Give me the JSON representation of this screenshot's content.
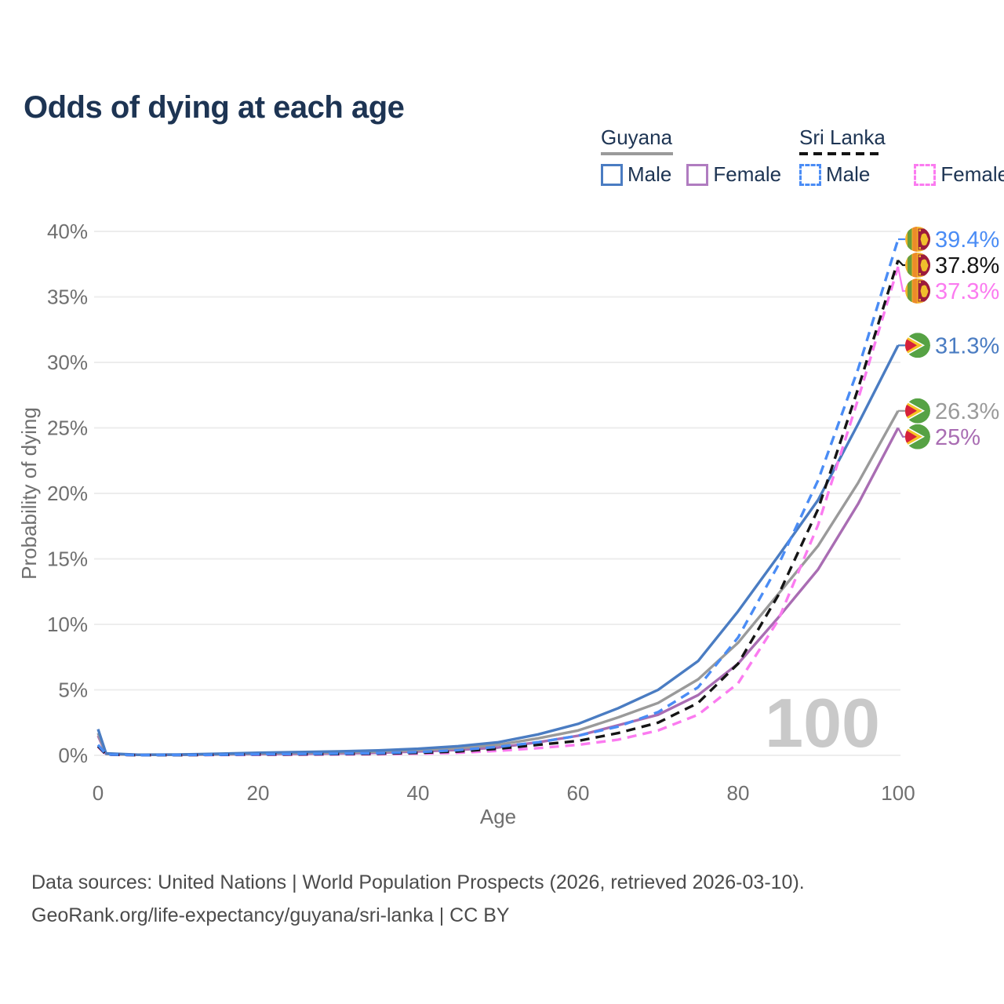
{
  "header": {
    "title": "Odds of dying at each age"
  },
  "legend": {
    "guyana": {
      "title": "Guyana",
      "male": "Male",
      "female": "Female"
    },
    "sri_lanka": {
      "title": "Sri Lanka",
      "male": "Male",
      "female": "Female"
    }
  },
  "footer": {
    "line1": "Data sources: United Nations | World Population Prospects (2026, retrieved 2026-03-10).",
    "line2": "GeoRank.org/life-expectancy/guyana/sri-lanka | CC BY"
  },
  "colors": {
    "title_navy": "#1d3453",
    "guyana_male": "#4a7cc2",
    "guyana_female": "#a96db3",
    "guyana_overall": "#9a9a9a",
    "sri_lanka_male": "#4a8cf5",
    "sri_lanka_female": "#fb7bf0",
    "sri_lanka_overall": "#151515",
    "axis_text": "#6f6f6f",
    "gridline": "#ededed",
    "watermark": "#c9c9c9",
    "footer_text": "#4b4b4b"
  },
  "chart_data": {
    "type": "line",
    "title": "Odds of dying at each age",
    "xlabel": "Age",
    "ylabel": "Probability of dying",
    "watermark": "100",
    "grid": "horizontal",
    "xlim": [
      0,
      100
    ],
    "ylim": [
      0,
      40
    ],
    "legend_position": "top-right",
    "x_ticks": [
      {
        "label": "0",
        "value": 0
      },
      {
        "label": "20",
        "value": 20
      },
      {
        "label": "40",
        "value": 40
      },
      {
        "label": "60",
        "value": 60
      },
      {
        "label": "80",
        "value": 80
      },
      {
        "label": "100",
        "value": 100
      }
    ],
    "y_ticks": [
      {
        "label": "0%",
        "value": 0
      },
      {
        "label": "5%",
        "value": 5
      },
      {
        "label": "10%",
        "value": 10
      },
      {
        "label": "15%",
        "value": 15
      },
      {
        "label": "20%",
        "value": 20
      },
      {
        "label": "25%",
        "value": 25
      },
      {
        "label": "30%",
        "value": 30
      },
      {
        "label": "35%",
        "value": 35
      },
      {
        "label": "40%",
        "value": 40
      }
    ],
    "ages": [
      0,
      1,
      5,
      10,
      15,
      20,
      25,
      30,
      35,
      40,
      45,
      50,
      55,
      60,
      65,
      70,
      75,
      80,
      85,
      90,
      95,
      100
    ],
    "series": [
      {
        "id": "guyana-female",
        "name": "Guyana Female",
        "country": "Guyana",
        "sex": "Female",
        "color": "#a96db3",
        "dash": "solid",
        "flag": "guyana",
        "end_label": "25%",
        "values": [
          1.5,
          0.11,
          0.04,
          0.04,
          0.07,
          0.1,
          0.12,
          0.15,
          0.2,
          0.3,
          0.42,
          0.6,
          1.0,
          1.5,
          2.3,
          3.1,
          4.6,
          7.0,
          10.5,
          14.2,
          19.2,
          25.0
        ]
      },
      {
        "id": "guyana-overall",
        "name": "Guyana (both sexes)",
        "country": "Guyana",
        "sex": "All",
        "color": "#9a9a9a",
        "dash": "solid",
        "flag": "guyana",
        "end_label": "26.3%",
        "values": [
          1.7,
          0.12,
          0.04,
          0.05,
          0.09,
          0.15,
          0.19,
          0.23,
          0.29,
          0.4,
          0.55,
          0.8,
          1.3,
          1.9,
          2.9,
          4.0,
          5.8,
          8.6,
          12.3,
          16.0,
          20.8,
          26.3
        ]
      },
      {
        "id": "guyana-male",
        "name": "Guyana Male",
        "country": "Guyana",
        "sex": "Male",
        "color": "#4a7cc2",
        "dash": "solid",
        "flag": "guyana",
        "end_label": "31.3%",
        "values": [
          2.0,
          0.15,
          0.05,
          0.06,
          0.12,
          0.2,
          0.25,
          0.3,
          0.38,
          0.5,
          0.7,
          1.0,
          1.6,
          2.4,
          3.6,
          5.0,
          7.2,
          11.0,
          15.2,
          19.5,
          25.3,
          31.3
        ]
      },
      {
        "id": "sri-lanka-female",
        "name": "Sri Lanka Female",
        "country": "Sri Lanka",
        "sex": "Female",
        "color": "#fb7bf0",
        "dash": "dashed",
        "flag": "sri-lanka",
        "end_label": "37.3%",
        "values": [
          0.65,
          0.05,
          0.02,
          0.02,
          0.03,
          0.04,
          0.05,
          0.07,
          0.09,
          0.13,
          0.2,
          0.35,
          0.55,
          0.8,
          1.2,
          1.9,
          3.1,
          5.5,
          10.3,
          17.6,
          27.2,
          37.3
        ]
      },
      {
        "id": "sri-lanka-overall",
        "name": "Sri Lanka (both sexes)",
        "country": "Sri Lanka",
        "sex": "All",
        "color": "#151515",
        "dash": "dashed",
        "flag": "sri-lanka",
        "end_label": "37.8%",
        "values": [
          0.7,
          0.06,
          0.02,
          0.02,
          0.04,
          0.07,
          0.08,
          0.1,
          0.13,
          0.19,
          0.3,
          0.5,
          0.8,
          1.1,
          1.7,
          2.5,
          4.0,
          7.0,
          12.2,
          18.8,
          28.0,
          37.8
        ]
      },
      {
        "id": "sri-lanka-male",
        "name": "Sri Lanka Male",
        "country": "Sri Lanka",
        "sex": "Male",
        "color": "#4a8cf5",
        "dash": "dashed",
        "flag": "sri-lanka",
        "end_label": "39.4%",
        "values": [
          0.8,
          0.07,
          0.02,
          0.03,
          0.05,
          0.09,
          0.11,
          0.13,
          0.17,
          0.25,
          0.4,
          0.65,
          1.0,
          1.5,
          2.2,
          3.3,
          5.2,
          9.0,
          14.5,
          21.0,
          29.5,
          39.4
        ]
      }
    ]
  }
}
